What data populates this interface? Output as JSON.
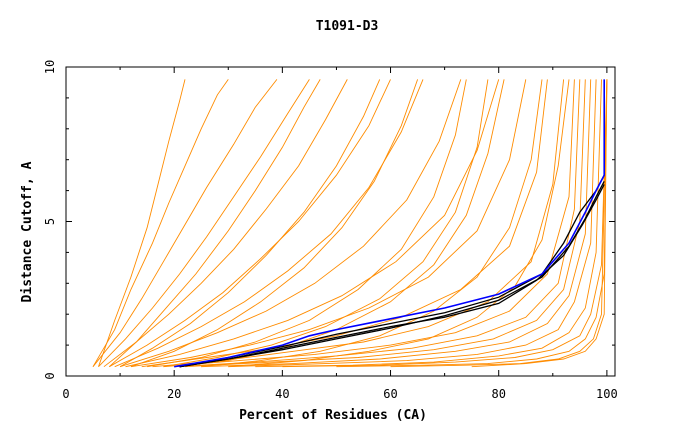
{
  "chart_data": {
    "type": "line",
    "title": "T1091-D3",
    "xlabel": "Percent of Residues (CA)",
    "ylabel": "Distance Cutoff, A",
    "xlim": [
      0,
      101.5
    ],
    "ylim": [
      0,
      10
    ],
    "x_ticks": [
      0,
      20,
      40,
      60,
      80,
      100
    ],
    "y_ticks": [
      0,
      5,
      10
    ],
    "grid": false,
    "legend": "none",
    "colors": {
      "group": "#ff8c00",
      "highlight_black": "#000000",
      "highlight_blue": "#0000ff"
    },
    "group_curves": [
      {
        "x": [
          5,
          9,
          12,
          16,
          19,
          22,
          25,
          28,
          30
        ],
        "y": [
          0.3,
          1.5,
          2.8,
          4.3,
          5.6,
          6.8,
          8.0,
          9.1,
          9.6
        ]
      },
      {
        "x": [
          6,
          9,
          12,
          15,
          17,
          19,
          21,
          22
        ],
        "y": [
          0.3,
          1.8,
          3.2,
          4.8,
          6.2,
          7.6,
          8.9,
          9.6
        ]
      },
      {
        "x": [
          5,
          10,
          14,
          18,
          22,
          26,
          31,
          35,
          39
        ],
        "y": [
          0.3,
          1.4,
          2.5,
          3.7,
          4.9,
          6.1,
          7.5,
          8.7,
          9.6
        ]
      },
      {
        "x": [
          6,
          11,
          16,
          21,
          26,
          31,
          36,
          41,
          45
        ],
        "y": [
          0.3,
          1.2,
          2.2,
          3.3,
          4.5,
          5.8,
          7.1,
          8.5,
          9.6
        ]
      },
      {
        "x": [
          7,
          13,
          19,
          25,
          31,
          37,
          43,
          48,
          52
        ],
        "y": [
          0.3,
          1.1,
          2.0,
          3.0,
          4.1,
          5.4,
          6.8,
          8.3,
          9.6
        ]
      },
      {
        "x": [
          8,
          15,
          22,
          29,
          36,
          43,
          50,
          56,
          60
        ],
        "y": [
          0.3,
          1.0,
          1.8,
          2.7,
          3.8,
          5.0,
          6.5,
          8.1,
          9.6
        ]
      },
      {
        "x": [
          9,
          17,
          25,
          33,
          41,
          49,
          56,
          62,
          66
        ],
        "y": [
          0.3,
          0.9,
          1.6,
          2.4,
          3.4,
          4.6,
          6.1,
          7.9,
          9.6
        ]
      },
      {
        "x": [
          10,
          19,
          28,
          37,
          46,
          55,
          63,
          69,
          73
        ],
        "y": [
          0.3,
          0.8,
          1.4,
          2.1,
          3.0,
          4.2,
          5.7,
          7.6,
          9.6
        ]
      },
      {
        "x": [
          11,
          21,
          31,
          41,
          51,
          61,
          70,
          76,
          80
        ],
        "y": [
          0.3,
          0.7,
          1.2,
          1.8,
          2.6,
          3.7,
          5.2,
          7.3,
          9.6
        ]
      },
      {
        "x": [
          12,
          23,
          34,
          45,
          56,
          67,
          76,
          82,
          85
        ],
        "y": [
          0.3,
          0.6,
          1.0,
          1.5,
          2.2,
          3.2,
          4.7,
          7.0,
          9.6
        ]
      },
      {
        "x": [
          14,
          26,
          38,
          50,
          62,
          73,
          82,
          87,
          89
        ],
        "y": [
          0.3,
          0.6,
          0.9,
          1.3,
          1.9,
          2.8,
          4.2,
          6.6,
          9.6
        ]
      },
      {
        "x": [
          16,
          29,
          42,
          55,
          67,
          78,
          86,
          90,
          92
        ],
        "y": [
          0.3,
          0.5,
          0.8,
          1.1,
          1.6,
          2.4,
          3.7,
          6.2,
          9.6
        ]
      },
      {
        "x": [
          18,
          32,
          46,
          60,
          72,
          82,
          89,
          93,
          94
        ],
        "y": [
          0.3,
          0.5,
          0.7,
          1.0,
          1.4,
          2.1,
          3.3,
          5.8,
          9.6
        ]
      },
      {
        "x": [
          20,
          35,
          50,
          64,
          76,
          85,
          91,
          94,
          95
        ],
        "y": [
          0.3,
          0.45,
          0.65,
          0.9,
          1.3,
          1.9,
          3.0,
          5.4,
          9.6
        ]
      },
      {
        "x": [
          22,
          38,
          54,
          68,
          79,
          87,
          92,
          95,
          96
        ],
        "y": [
          0.3,
          0.45,
          0.6,
          0.85,
          1.2,
          1.8,
          2.8,
          5.0,
          9.6
        ]
      },
      {
        "x": [
          25,
          42,
          58,
          72,
          82,
          89,
          93,
          96,
          97
        ],
        "y": [
          0.3,
          0.4,
          0.55,
          0.8,
          1.1,
          1.7,
          2.6,
          4.6,
          9.6
        ]
      },
      {
        "x": [
          30,
          48,
          63,
          76,
          85,
          91,
          94,
          97,
          98
        ],
        "y": [
          0.3,
          0.4,
          0.5,
          0.7,
          1.0,
          1.5,
          2.4,
          4.3,
          9.6
        ]
      },
      {
        "x": [
          35,
          53,
          68,
          80,
          88,
          93,
          96,
          98,
          99
        ],
        "y": [
          0.3,
          0.35,
          0.45,
          0.65,
          0.9,
          1.4,
          2.2,
          4.0,
          9.6
        ]
      },
      {
        "x": [
          40,
          58,
          72,
          83,
          90,
          95,
          97,
          99,
          100
        ],
        "y": [
          0.3,
          0.35,
          0.45,
          0.6,
          0.85,
          1.3,
          2.0,
          3.6,
          9.6
        ]
      },
      {
        "x": [
          50,
          66,
          78,
          87,
          93,
          96,
          98,
          99.5,
          100
        ],
        "y": [
          0.3,
          0.35,
          0.4,
          0.55,
          0.8,
          1.2,
          1.9,
          3.3,
          9.6
        ]
      },
      {
        "x": [
          60,
          74,
          84,
          91,
          95,
          97.5,
          99,
          100
        ],
        "y": [
          0.3,
          0.35,
          0.4,
          0.55,
          0.8,
          1.2,
          2.0,
          9.6
        ]
      },
      {
        "x": [
          75,
          85,
          92,
          96,
          98,
          99.5,
          100
        ],
        "y": [
          0.3,
          0.4,
          0.55,
          0.8,
          1.2,
          2.0,
          9.6
        ]
      },
      {
        "x": [
          20,
          30,
          40,
          50,
          60,
          68,
          74,
          78,
          81
        ],
        "y": [
          0.3,
          0.5,
          0.9,
          1.5,
          2.4,
          3.6,
          5.2,
          7.2,
          9.6
        ]
      },
      {
        "x": [
          25,
          36,
          47,
          58,
          68,
          76,
          82,
          86,
          88
        ],
        "y": [
          0.3,
          0.5,
          0.8,
          1.3,
          2.1,
          3.2,
          4.8,
          7.0,
          9.6
        ]
      },
      {
        "x": [
          15,
          25,
          35,
          45,
          54,
          62,
          68,
          72,
          74
        ],
        "y": [
          0.3,
          0.6,
          1.1,
          1.8,
          2.8,
          4.1,
          5.8,
          7.8,
          9.6
        ]
      },
      {
        "x": [
          10,
          16,
          23,
          30,
          37,
          44,
          50,
          55,
          58
        ],
        "y": [
          0.3,
          0.9,
          1.7,
          2.7,
          3.9,
          5.3,
          6.8,
          8.4,
          9.6
        ]
      },
      {
        "x": [
          8,
          13,
          18,
          24,
          30,
          35,
          40,
          44,
          47
        ],
        "y": [
          0.3,
          1.1,
          2.1,
          3.3,
          4.7,
          6.0,
          7.4,
          8.7,
          9.6
        ]
      },
      {
        "x": [
          30,
          44,
          56,
          67,
          76,
          83,
          88,
          91,
          93
        ],
        "y": [
          0.3,
          0.5,
          0.8,
          1.2,
          1.9,
          2.9,
          4.4,
          6.8,
          9.6
        ]
      },
      {
        "x": [
          12,
          20,
          28,
          36,
          44,
          51,
          57,
          62,
          65
        ],
        "y": [
          0.3,
          0.8,
          1.5,
          2.4,
          3.5,
          4.8,
          6.3,
          8.1,
          9.6
        ]
      },
      {
        "x": [
          18,
          28,
          38,
          48,
          58,
          66,
          72,
          76,
          78
        ],
        "y": [
          0.3,
          0.6,
          1.0,
          1.6,
          2.5,
          3.7,
          5.3,
          7.4,
          9.6
        ]
      }
    ],
    "highlight_curves": [
      {
        "color": "black",
        "x": [
          21,
          30,
          40,
          50,
          60,
          70,
          80,
          88,
          93,
          96,
          98,
          99.5
        ],
        "y": [
          0.3,
          0.55,
          0.85,
          1.2,
          1.55,
          1.95,
          2.45,
          3.2,
          4.2,
          5.1,
          5.8,
          6.3
        ]
      },
      {
        "color": "black",
        "x": [
          21,
          30,
          40,
          50,
          60,
          70,
          80,
          88,
          92,
          95,
          98,
          99.5
        ],
        "y": [
          0.3,
          0.6,
          0.95,
          1.35,
          1.7,
          2.05,
          2.55,
          3.3,
          4.3,
          5.3,
          6.0,
          6.5
        ]
      },
      {
        "color": "black",
        "x": [
          21,
          30,
          40,
          50,
          60,
          70,
          80,
          87,
          92,
          95.5,
          98,
          99.5
        ],
        "y": [
          0.3,
          0.55,
          0.9,
          1.25,
          1.6,
          1.9,
          2.35,
          3.1,
          3.9,
          4.9,
          5.7,
          6.2
        ]
      },
      {
        "color": "blue",
        "x": [
          20,
          30,
          40,
          45,
          50,
          60,
          70,
          80,
          88,
          93,
          96,
          98,
          99.5,
          99.5
        ],
        "y": [
          0.3,
          0.6,
          1.0,
          1.3,
          1.5,
          1.85,
          2.2,
          2.65,
          3.3,
          4.3,
          5.3,
          6.0,
          6.5,
          9.6
        ]
      }
    ]
  }
}
